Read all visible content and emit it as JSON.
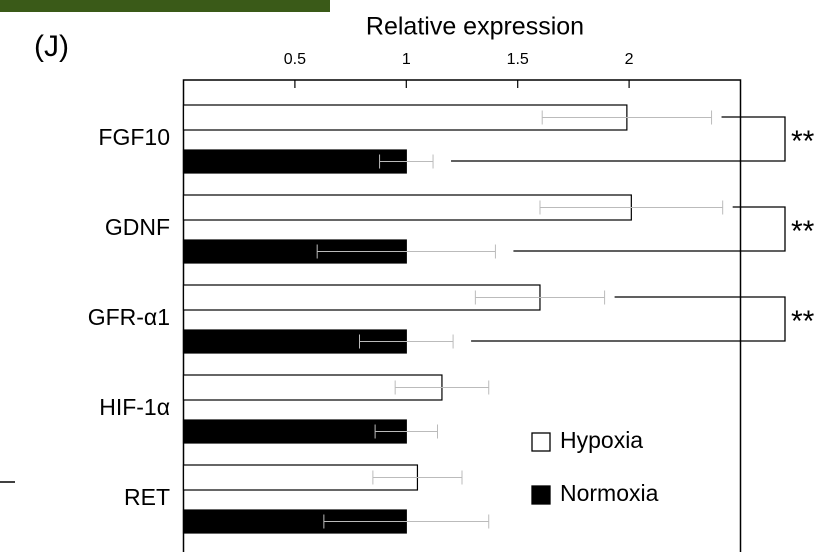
{
  "chart_data": {
    "type": "hbar",
    "panel_label": "(J)",
    "title": "Relative expression",
    "categories": [
      "FGF10",
      "GDNF",
      "GFR-α1",
      "HIF-1α",
      "RET"
    ],
    "series": [
      {
        "name": "Hypoxia",
        "color": "#ffffff",
        "values": [
          1.99,
          2.01,
          1.6,
          1.16,
          1.05
        ],
        "errors": [
          0.38,
          0.41,
          0.29,
          0.21,
          0.2
        ]
      },
      {
        "name": "Normoxia",
        "color": "#000000",
        "values": [
          1.0,
          1.0,
          1.0,
          1.0,
          1.0
        ],
        "errors": [
          0.12,
          0.4,
          0.21,
          0.14,
          0.37
        ]
      }
    ],
    "xlim": [
      0,
      2.5
    ],
    "xticks": [
      0.5,
      1.0,
      1.5,
      2.0
    ],
    "significance_labels": [
      "**",
      "**",
      "**"
    ],
    "legend": "lower right"
  }
}
